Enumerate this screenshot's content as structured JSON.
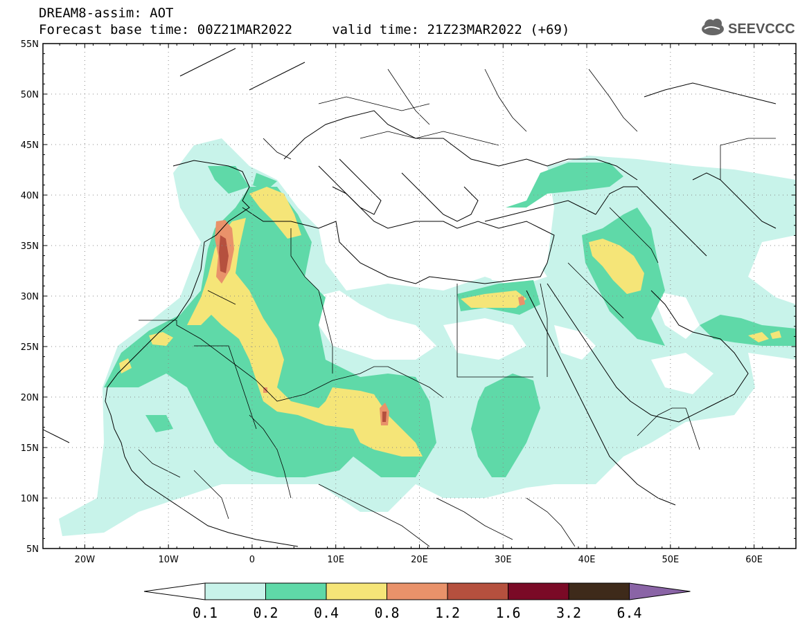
{
  "header": {
    "title_line1": "DREAM8-assim: AOT",
    "title_line2": "Forecast base time: 00Z21MAR2022     valid time: 21Z23MAR2022 (+69)",
    "logo_text": "SEEVCCC"
  },
  "map": {
    "lon_range": [
      -25,
      65
    ],
    "lat_range": [
      5,
      55
    ],
    "lat_ticks": [
      "55N",
      "50N",
      "45N",
      "40N",
      "35N",
      "30N",
      "25N",
      "20N",
      "15N",
      "10N",
      "5N"
    ],
    "lon_ticks": [
      "20W",
      "10W",
      "0",
      "10E",
      "20E",
      "30E",
      "40E",
      "50E",
      "60E"
    ]
  },
  "legend": {
    "labels": [
      "0.1",
      "0.2",
      "0.4",
      "0.8",
      "1.2",
      "1.6",
      "3.2",
      "6.4"
    ],
    "colors": [
      "#c8f3ea",
      "#5fd9a8",
      "#f5e578",
      "#e9926a",
      "#b5503e",
      "#7a0a26",
      "#3e2a1a",
      "#8a64a6"
    ]
  }
}
